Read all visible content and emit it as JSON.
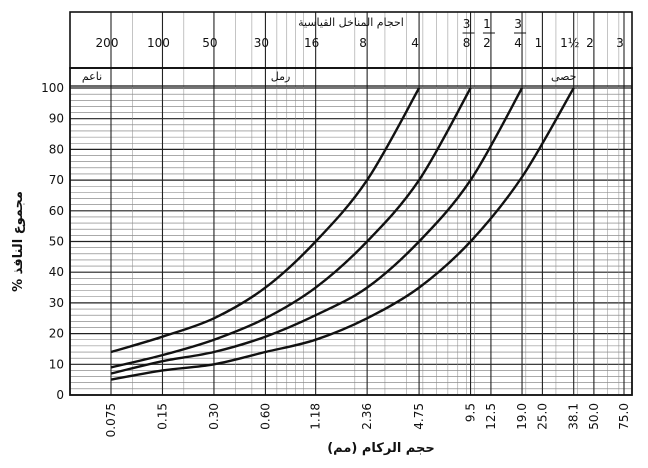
{
  "chart_data": {
    "type": "line",
    "title": "",
    "top_axis_label": "احجام المناخل القياسية",
    "xlabel": "حجم الركام (مم)",
    "ylabel": "% مجموع النافذ",
    "x_scale": "log",
    "ylim": [
      0,
      100
    ],
    "grid": true,
    "y_ticks": [
      "0",
      "10",
      "20",
      "30",
      "40",
      "50",
      "60",
      "70",
      "80",
      "90",
      "100"
    ],
    "x_ticks": [
      {
        "value": 0.075,
        "label": "0.075"
      },
      {
        "value": 0.15,
        "label": "0.15"
      },
      {
        "value": 0.3,
        "label": "0.30"
      },
      {
        "value": 0.6,
        "label": "0.60"
      },
      {
        "value": 1.18,
        "label": "1.18"
      },
      {
        "value": 2.36,
        "label": "2.36"
      },
      {
        "value": 4.75,
        "label": "4.75"
      },
      {
        "value": 9.5,
        "label": "9.5"
      },
      {
        "value": 12.5,
        "label": "12.5"
      },
      {
        "value": 19.0,
        "label": "19.0"
      },
      {
        "value": 25.0,
        "label": "25.0"
      },
      {
        "value": 38.1,
        "label": "38.1"
      },
      {
        "value": 50.0,
        "label": "50.0"
      },
      {
        "value": 75.0,
        "label": "75.0"
      }
    ],
    "top_ticks": [
      {
        "value": 0.075,
        "label": "200"
      },
      {
        "value": 0.15,
        "label": "100"
      },
      {
        "value": 0.3,
        "label": "50"
      },
      {
        "value": 0.6,
        "label": "30"
      },
      {
        "value": 1.18,
        "label": "16"
      },
      {
        "value": 2.36,
        "label": "8"
      },
      {
        "value": 4.75,
        "label": "4"
      },
      {
        "value": 9.5,
        "num": "3",
        "den": "8"
      },
      {
        "value": 12.5,
        "num": "1",
        "den": "2"
      },
      {
        "value": 19.0,
        "num": "3",
        "den": "4"
      },
      {
        "value": 25.0,
        "label": "1"
      },
      {
        "value": 38.1,
        "label": "1½"
      },
      {
        "value": 50.0,
        "label": "2"
      },
      {
        "value": 75.0,
        "label": "3"
      }
    ],
    "zones": [
      {
        "label": "ناعم",
        "from": 0.075,
        "to": 0.075
      },
      {
        "label": "رمل",
        "from": 0.075,
        "to": 4.75
      },
      {
        "label": "حصى",
        "from": 4.75,
        "to": 75.0
      }
    ],
    "series": [
      {
        "x": [
          0.075,
          0.15,
          0.3,
          0.6,
          1.18,
          2.36,
          4.75
        ],
        "y": [
          14,
          19,
          25,
          35,
          50,
          70,
          100
        ]
      },
      {
        "x": [
          0.075,
          0.15,
          0.3,
          0.6,
          1.18,
          2.36,
          4.75,
          9.5
        ],
        "y": [
          9,
          13,
          18,
          25,
          35,
          50,
          70,
          100
        ]
      },
      {
        "x": [
          0.075,
          0.15,
          0.3,
          0.6,
          1.18,
          2.36,
          4.75,
          9.5,
          19.0
        ],
        "y": [
          7,
          11,
          14,
          19,
          26,
          35,
          50,
          70,
          100
        ]
      },
      {
        "x": [
          0.075,
          0.15,
          0.3,
          0.6,
          1.18,
          2.36,
          4.75,
          9.5,
          19.0,
          38.1
        ],
        "y": [
          5,
          8,
          10,
          14,
          18,
          25,
          35,
          50,
          71,
          100
        ]
      }
    ]
  }
}
